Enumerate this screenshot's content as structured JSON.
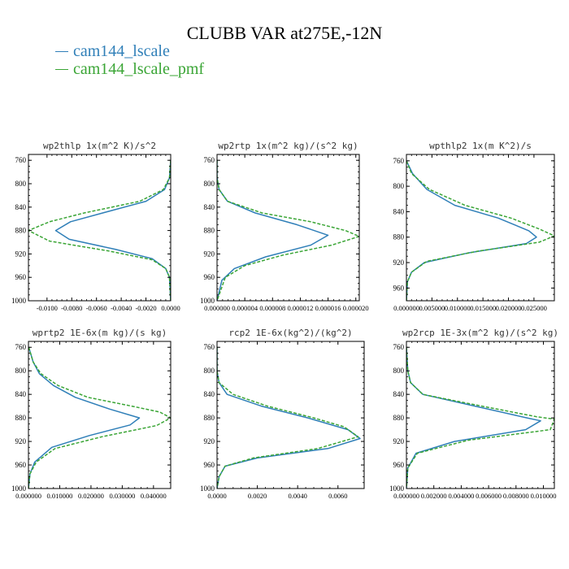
{
  "figure": {
    "title": "CLUBB VAR at275E,-12N",
    "legend": [
      {
        "label": "cam144_lscale",
        "color": "#2f7fb8",
        "dash": false
      },
      {
        "label": "cam144_lscale_pmf",
        "color": "#3aa535",
        "dash": true
      }
    ]
  },
  "chart_data": [
    {
      "type": "line",
      "title": "wp2thlp   1x(m^2 K)/s^2",
      "xticks": [
        "-0.0100",
        "-0.0080",
        "-0.0060",
        "-0.0040",
        "-0.0020",
        "0.0000"
      ],
      "xtick_values": [
        -0.01,
        -0.008,
        -0.006,
        -0.004,
        -0.002,
        0.0
      ],
      "xlim": [
        -0.0115,
        0.0
      ],
      "yticks": [
        "760",
        "800",
        "840",
        "880",
        "920",
        "960",
        "1000"
      ],
      "ylim": [
        750,
        1000
      ],
      "y_reversed": true,
      "series": [
        {
          "name": "cam144_lscale",
          "x": [
            0,
            -0.0001,
            -0.0005,
            -0.002,
            -0.0055,
            -0.0081,
            -0.0093,
            -0.0082,
            -0.0045,
            -0.0015,
            -0.0004,
            -0.0001,
            0
          ],
          "y": [
            760,
            790,
            810,
            830,
            850,
            865,
            880,
            895,
            912,
            928,
            945,
            960,
            1000
          ]
        },
        {
          "name": "cam144_lscale_pmf",
          "x": [
            0,
            -0.0001,
            -0.0006,
            -0.0025,
            -0.007,
            -0.0098,
            -0.0115,
            -0.0098,
            -0.005,
            -0.0015,
            -0.0004,
            -0.0001,
            0
          ],
          "y": [
            760,
            790,
            810,
            830,
            850,
            865,
            880,
            898,
            915,
            930,
            945,
            960,
            1000
          ]
        }
      ]
    },
    {
      "type": "line",
      "title": "wp2rtp   1x(m^2 kg)/(s^2 kg)",
      "xticks": [
        "0.000000",
        "0.000004",
        "0.000008",
        "0.000012",
        "0.000016",
        "0.000020"
      ],
      "xtick_values": [
        0,
        4e-06,
        8e-06,
        1.2e-05,
        1.6e-05,
        2e-05
      ],
      "xlim": [
        0,
        2.05e-05
      ],
      "yticks": [
        "760",
        "800",
        "840",
        "880",
        "920",
        "960",
        "1000"
      ],
      "ylim": [
        750,
        1000
      ],
      "y_reversed": true,
      "series": [
        {
          "name": "cam144_lscale",
          "x": [
            0,
            0,
            3e-07,
            1.5e-06,
            5.5e-06,
            1.15e-05,
            1.6e-05,
            1.35e-05,
            7e-06,
            2.5e-06,
            7e-07,
            0
          ],
          "y": [
            760,
            790,
            810,
            830,
            850,
            870,
            888,
            905,
            925,
            945,
            965,
            1000
          ]
        },
        {
          "name": "cam144_lscale_pmf",
          "x": [
            0,
            0,
            3e-07,
            1.5e-06,
            6.5e-06,
            1.35e-05,
            1.85e-05,
            2.05e-05,
            1.65e-05,
            9.5e-06,
            4e-06,
            1.2e-06,
            0
          ],
          "y": [
            760,
            790,
            810,
            830,
            850,
            865,
            880,
            890,
            905,
            922,
            940,
            960,
            1000
          ]
        }
      ]
    },
    {
      "type": "line",
      "title": "wpthlp2   1x(m K^2)/s",
      "xticks": [
        "0.000000",
        "0.005000",
        "0.010000",
        "0.015000",
        "0.020000",
        "0.025000"
      ],
      "xtick_values": [
        0,
        0.005,
        0.01,
        0.015,
        0.02,
        0.025
      ],
      "xlim": [
        0,
        0.029
      ],
      "yticks": [
        "760",
        "800",
        "840",
        "880",
        "920",
        "960"
      ],
      "ylim": [
        750,
        980
      ],
      "y_reversed": true,
      "series": [
        {
          "name": "cam144_lscale",
          "x": [
            0,
            0.0012,
            0.004,
            0.0095,
            0.018,
            0.024,
            0.0255,
            0.0235,
            0.012,
            0.0035,
            0.001,
            0.0002,
            0
          ],
          "y": [
            760,
            780,
            805,
            830,
            850,
            870,
            880,
            890,
            905,
            920,
            935,
            950,
            980
          ]
        },
        {
          "name": "cam144_lscale_pmf",
          "x": [
            0,
            0.001,
            0.0045,
            0.0115,
            0.0205,
            0.026,
            0.029,
            0.026,
            0.014,
            0.004,
            0.001,
            0.0002,
            0
          ],
          "y": [
            760,
            780,
            805,
            830,
            850,
            867,
            878,
            888,
            902,
            918,
            935,
            950,
            980
          ]
        }
      ]
    },
    {
      "type": "line",
      "title": "wprtp2   1E-6x(m kg)/(s kg)",
      "xticks": [
        "0.000000",
        "0.010000",
        "0.020000",
        "0.030000",
        "0.040000"
      ],
      "xtick_values": [
        0,
        0.01,
        0.02,
        0.03,
        0.04
      ],
      "xlim": [
        0,
        0.0455
      ],
      "yticks": [
        "760",
        "800",
        "840",
        "880",
        "920",
        "960",
        "1000"
      ],
      "ylim": [
        750,
        1000
      ],
      "y_reversed": true,
      "series": [
        {
          "name": "cam144_lscale",
          "x": [
            0.0001,
            0.0015,
            0.0035,
            0.008,
            0.015,
            0.026,
            0.0355,
            0.0325,
            0.0195,
            0.0075,
            0.002,
            0.0005,
            0
          ],
          "y": [
            760,
            785,
            805,
            825,
            845,
            865,
            880,
            892,
            910,
            930,
            955,
            975,
            1000
          ]
        },
        {
          "name": "cam144_lscale_pmf",
          "x": [
            0.0001,
            0.0015,
            0.004,
            0.0095,
            0.019,
            0.033,
            0.042,
            0.0455,
            0.041,
            0.0235,
            0.0085,
            0.0025,
            0.0005,
            0
          ],
          "y": [
            760,
            785,
            805,
            825,
            845,
            860,
            870,
            880,
            893,
            912,
            932,
            955,
            975,
            1000
          ]
        }
      ]
    },
    {
      "type": "line",
      "title": "rcp2   1E-6x(kg^2)/(kg^2)",
      "xticks": [
        "0.0000",
        "0.0020",
        "0.0040",
        "0.0060"
      ],
      "xtick_values": [
        0,
        0.002,
        0.004,
        0.006
      ],
      "xlim": [
        0,
        0.0073
      ],
      "yticks": [
        "760",
        "800",
        "840",
        "880",
        "920",
        "960",
        "1000"
      ],
      "ylim": [
        750,
        1000
      ],
      "y_reversed": true,
      "series": [
        {
          "name": "cam144_lscale",
          "x": [
            0,
            0,
            0.0001,
            0.0005,
            0.0022,
            0.0045,
            0.0065,
            0.0071,
            0.0055,
            0.002,
            0.0004,
            0.0001,
            0
          ],
          "y": [
            760,
            800,
            820,
            840,
            860,
            880,
            900,
            915,
            932,
            948,
            962,
            980,
            1000
          ]
        },
        {
          "name": "cam144_lscale_pmf",
          "x": [
            0,
            0,
            0.0001,
            0.0008,
            0.0025,
            0.0048,
            0.0063,
            0.007,
            0.005,
            0.0018,
            0.0004,
            0.0001,
            0
          ],
          "y": [
            760,
            800,
            820,
            840,
            860,
            880,
            895,
            912,
            932,
            948,
            962,
            980,
            1000
          ]
        }
      ]
    },
    {
      "type": "line",
      "title": "wp2rcp   1E-3x(m^2 kg)/(s^2 kg)",
      "xticks": [
        "0.000000",
        "0.002000",
        "0.004000",
        "0.006000",
        "0.008000",
        "0.010000"
      ],
      "xtick_values": [
        0,
        0.002,
        0.004,
        0.006,
        0.008,
        0.01
      ],
      "xlim": [
        0,
        0.0108
      ],
      "yticks": [
        "760",
        "800",
        "840",
        "880",
        "920",
        "960",
        "1000"
      ],
      "ylim": [
        750,
        1000
      ],
      "y_reversed": true,
      "series": [
        {
          "name": "cam144_lscale",
          "x": [
            0,
            0.0001,
            0.0003,
            0.0012,
            0.005,
            0.0088,
            0.0098,
            0.0087,
            0.0035,
            0.0007,
            0.0001,
            0
          ],
          "y": [
            760,
            800,
            820,
            840,
            860,
            880,
            885,
            900,
            920,
            940,
            965,
            1000
          ]
        },
        {
          "name": "cam144_lscale_pmf",
          "x": [
            0,
            0.0001,
            0.0003,
            0.0012,
            0.0055,
            0.0095,
            0.0108,
            0.0105,
            0.0045,
            0.0008,
            0.0001,
            0
          ],
          "y": [
            760,
            800,
            820,
            840,
            860,
            878,
            882,
            900,
            918,
            940,
            965,
            1000
          ]
        }
      ]
    }
  ]
}
